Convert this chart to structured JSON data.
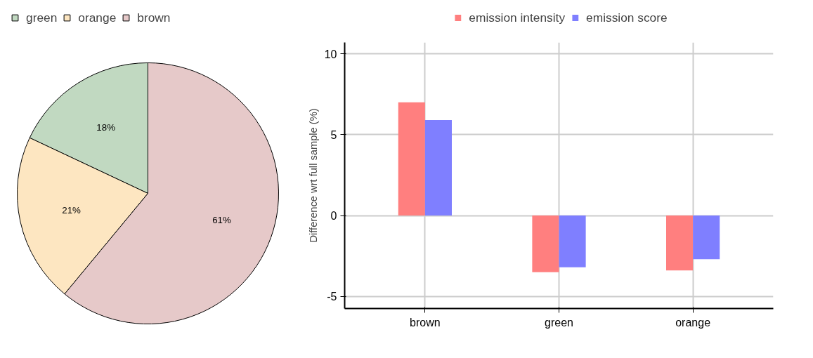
{
  "chart_data": [
    {
      "type": "pie",
      "categories": [
        "green",
        "orange",
        "brown"
      ],
      "values": [
        18,
        21,
        61
      ],
      "colors": [
        "#c1d9c1",
        "#fde6c1",
        "#e6c9c9"
      ],
      "legend": "top left",
      "value_labels": [
        "18%",
        "21%",
        "61%"
      ]
    },
    {
      "type": "bar",
      "categories": [
        "brown",
        "green",
        "orange"
      ],
      "ylabel": "Difference wrt full sample (%)",
      "ylim": [
        -5.75,
        10.7
      ],
      "yticks": [
        -5,
        0,
        5,
        10
      ],
      "grid": true,
      "legend": "top",
      "series": [
        {
          "name": "emission intensity",
          "color": "#ff7f7f",
          "values": [
            7.0,
            -3.5,
            -3.4
          ]
        },
        {
          "name": "emission score",
          "color": "#7f7fff",
          "values": [
            5.9,
            -3.2,
            -2.7
          ]
        }
      ]
    }
  ]
}
